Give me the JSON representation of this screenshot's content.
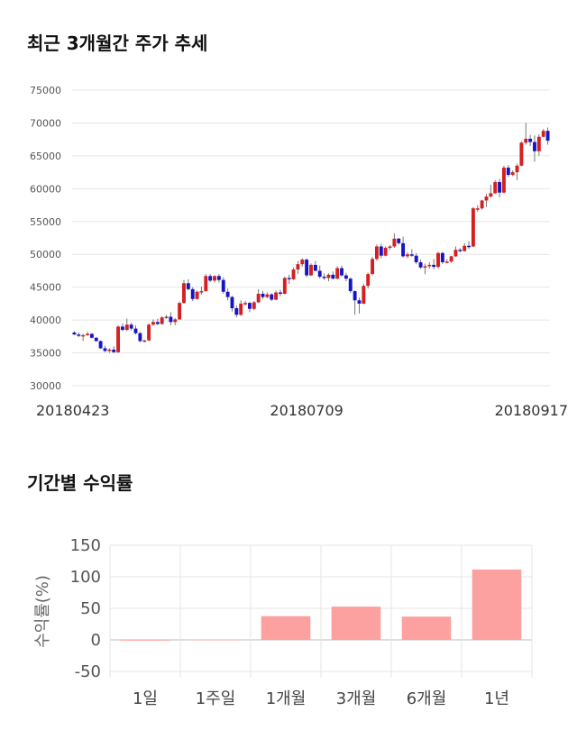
{
  "section1": {
    "title": "최근 3개월간 주가 추세"
  },
  "section2": {
    "title": "기간별 수익률"
  },
  "chart_data": [
    {
      "type": "candlestick",
      "title": "최근 3개월간 주가 추세",
      "ylim": [
        30000,
        75000
      ],
      "yticks": [
        "75000",
        "70000",
        "65000",
        "60000",
        "55000",
        "50000",
        "45000",
        "40000",
        "35000",
        "30000"
      ],
      "xtick_labels": [
        {
          "label": "20180423",
          "index": 0
        },
        {
          "label": "20180709",
          "index": 53
        },
        {
          "label": "20180917",
          "index": 99
        }
      ],
      "up_color": "#d42020",
      "down_color": "#1414c8",
      "ohlc": [
        [
          38100,
          38300,
          37700,
          37800
        ],
        [
          37800,
          38100,
          37400,
          37600
        ],
        [
          37600,
          37900,
          36800,
          37700
        ],
        [
          37700,
          38200,
          37600,
          37900
        ],
        [
          37900,
          38000,
          37200,
          37300
        ],
        [
          37300,
          37400,
          36700,
          36800
        ],
        [
          36800,
          36900,
          35600,
          35700
        ],
        [
          35700,
          36100,
          35100,
          35300
        ],
        [
          35300,
          35700,
          35000,
          35500
        ],
        [
          35500,
          36000,
          35000,
          35100
        ],
        [
          35100,
          39200,
          35000,
          39000
        ],
        [
          39000,
          39500,
          38300,
          38500
        ],
        [
          38500,
          40200,
          38300,
          39300
        ],
        [
          39300,
          39600,
          38400,
          38700
        ],
        [
          38700,
          39200,
          37800,
          38000
        ],
        [
          38000,
          38200,
          36600,
          36800
        ],
        [
          36800,
          37000,
          36600,
          36900
        ],
        [
          36900,
          39500,
          36800,
          39300
        ],
        [
          39300,
          40100,
          39100,
          39700
        ],
        [
          39700,
          40200,
          39200,
          39400
        ],
        [
          39400,
          40600,
          39300,
          40400
        ],
        [
          40400,
          40800,
          40200,
          40500
        ],
        [
          40500,
          41200,
          39200,
          39700
        ],
        [
          39700,
          40300,
          39200,
          40100
        ],
        [
          40100,
          42800,
          40000,
          42600
        ],
        [
          42600,
          46100,
          42500,
          45600
        ],
        [
          45600,
          46200,
          44500,
          44700
        ],
        [
          44700,
          45000,
          42900,
          43200
        ],
        [
          43200,
          44500,
          43100,
          44300
        ],
        [
          44300,
          45100,
          43900,
          44400
        ],
        [
          44400,
          47000,
          44300,
          46700
        ],
        [
          46700,
          47000,
          45800,
          46000
        ],
        [
          46000,
          46800,
          45700,
          46700
        ],
        [
          46700,
          47000,
          45700,
          46100
        ],
        [
          46100,
          46500,
          44000,
          44300
        ],
        [
          44300,
          44800,
          43000,
          43500
        ],
        [
          43500,
          43700,
          41300,
          41800
        ],
        [
          41800,
          42200,
          40400,
          40800
        ],
        [
          40800,
          43000,
          40600,
          42500
        ],
        [
          42500,
          42900,
          42200,
          42600
        ],
        [
          42600,
          42800,
          41200,
          41700
        ],
        [
          41700,
          42900,
          41500,
          42700
        ],
        [
          42700,
          44700,
          42600,
          44000
        ],
        [
          44000,
          44400,
          43200,
          43500
        ],
        [
          43500,
          44200,
          43300,
          43900
        ],
        [
          43900,
          44100,
          42900,
          43100
        ],
        [
          43100,
          44500,
          43000,
          44200
        ],
        [
          44200,
          44600,
          43600,
          44000
        ],
        [
          44000,
          46600,
          43900,
          46400
        ],
        [
          46400,
          46900,
          45500,
          46200
        ],
        [
          46200,
          48000,
          46100,
          47700
        ],
        [
          47700,
          49000,
          47000,
          48500
        ],
        [
          48500,
          49400,
          48100,
          49200
        ],
        [
          49200,
          49400,
          46500,
          46800
        ],
        [
          46800,
          48600,
          46700,
          48400
        ],
        [
          48400,
          49000,
          47400,
          47500
        ],
        [
          47500,
          48300,
          46300,
          46600
        ],
        [
          46600,
          47100,
          46100,
          46400
        ],
        [
          46400,
          47100,
          45900,
          46900
        ],
        [
          46900,
          47400,
          46200,
          46300
        ],
        [
          46300,
          48200,
          46200,
          47900
        ],
        [
          47900,
          48300,
          46600,
          46800
        ],
        [
          46800,
          47200,
          45900,
          46300
        ],
        [
          46300,
          46500,
          44100,
          44400
        ],
        [
          44400,
          44500,
          40800,
          43000
        ],
        [
          43000,
          43400,
          41000,
          42500
        ],
        [
          42500,
          45500,
          42400,
          45200
        ],
        [
          45200,
          47200,
          44800,
          47000
        ],
        [
          47000,
          49600,
          46800,
          49300
        ],
        [
          49300,
          51500,
          49000,
          51200
        ],
        [
          51200,
          51600,
          49400,
          49800
        ],
        [
          49800,
          51200,
          49700,
          51000
        ],
        [
          51000,
          51400,
          50700,
          51200
        ],
        [
          51200,
          53200,
          51000,
          52400
        ],
        [
          52400,
          52500,
          51500,
          51700
        ],
        [
          51700,
          52700,
          49500,
          49700
        ],
        [
          49700,
          50300,
          49400,
          50000
        ],
        [
          50000,
          50800,
          49600,
          49800
        ],
        [
          49800,
          50200,
          48500,
          48800
        ],
        [
          48800,
          49200,
          47800,
          48000
        ],
        [
          48000,
          48600,
          47000,
          48200
        ],
        [
          48200,
          48800,
          47800,
          48400
        ],
        [
          48400,
          49300,
          47700,
          48100
        ],
        [
          48100,
          50400,
          47800,
          50200
        ],
        [
          50200,
          50400,
          48500,
          48800
        ],
        [
          48800,
          49300,
          48600,
          48900
        ],
        [
          48900,
          49800,
          48700,
          49700
        ],
        [
          49700,
          51200,
          49600,
          50700
        ],
        [
          50700,
          51000,
          50300,
          50500
        ],
        [
          50500,
          51700,
          50400,
          51300
        ],
        [
          51300,
          52000,
          50800,
          51200
        ],
        [
          51200,
          57200,
          51100,
          57000
        ],
        [
          57000,
          57500,
          56500,
          57000
        ],
        [
          57000,
          58300,
          56800,
          58200
        ],
        [
          58200,
          59200,
          57200,
          58800
        ],
        [
          58800,
          60600,
          58600,
          59300
        ],
        [
          59300,
          61300,
          59200,
          61000
        ],
        [
          61000,
          61500,
          58700,
          59400
        ],
        [
          59400,
          63500,
          59300,
          63200
        ],
        [
          63200,
          63600,
          61800,
          62100
        ]
      ],
      "ohlc_tail": [
        [
          62100,
          62800,
          61900,
          62500
        ],
        [
          62500,
          63800,
          61300,
          63500
        ],
        [
          63500,
          67200,
          63400,
          67000
        ],
        [
          67000,
          70000,
          66700,
          67600
        ],
        [
          67600,
          68200,
          66500,
          67100
        ],
        [
          67100,
          68100,
          64100,
          65700
        ],
        [
          65700,
          68300,
          65000,
          67900
        ],
        [
          67900,
          69100,
          67800,
          68800
        ],
        [
          68800,
          69300,
          66700,
          67300
        ]
      ]
    },
    {
      "type": "bar",
      "title": "기간별 수익률",
      "ylabel": "수익률(%)",
      "ylim": [
        -60,
        150
      ],
      "yticks": [
        "150",
        "100",
        "50",
        "0",
        "-50"
      ],
      "categories": [
        "1일",
        "1주일",
        "1개월",
        "3개월",
        "6개월",
        "1년"
      ],
      "values": [
        0,
        0.5,
        37.6,
        52.7,
        36.9,
        111.5
      ],
      "bar_color": "#fca0a0"
    }
  ]
}
